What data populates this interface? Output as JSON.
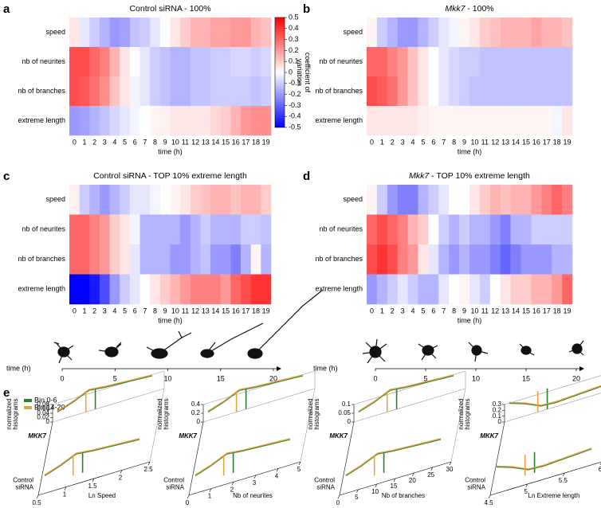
{
  "chart_data": [
    {
      "type": "heatmap",
      "panel": "a",
      "title": "Control siRNA - 100%",
      "italic_gene": false,
      "x_label": "time (h)",
      "x": [
        0,
        1,
        2,
        3,
        4,
        5,
        6,
        7,
        8,
        9,
        10,
        11,
        12,
        13,
        14,
        15,
        16,
        17,
        18,
        19
      ],
      "rows": [
        "speed",
        "nb of neurites",
        "nb of branches",
        "extreme length"
      ],
      "values": [
        [
          0.05,
          -0.05,
          -0.1,
          -0.15,
          -0.2,
          -0.18,
          -0.12,
          -0.1,
          -0.05,
          0,
          0.05,
          0.1,
          0.15,
          0.15,
          0.18,
          0.18,
          0.2,
          0.2,
          0.15,
          0.12
        ],
        [
          0.35,
          0.35,
          0.3,
          0.25,
          0.15,
          0.05,
          0,
          -0.05,
          -0.1,
          -0.12,
          -0.15,
          -0.15,
          -0.12,
          -0.12,
          -0.1,
          -0.1,
          -0.08,
          -0.08,
          -0.1,
          -0.08
        ],
        [
          0.35,
          0.33,
          0.28,
          0.22,
          0.12,
          0.05,
          -0.02,
          -0.05,
          -0.1,
          -0.12,
          -0.15,
          -0.15,
          -0.12,
          -0.12,
          -0.1,
          -0.1,
          -0.1,
          -0.1,
          -0.12,
          -0.1
        ],
        [
          -0.2,
          -0.18,
          -0.15,
          -0.12,
          -0.08,
          -0.05,
          -0.02,
          0,
          0.02,
          0.03,
          0.05,
          0.05,
          0.05,
          0.05,
          0.08,
          0.1,
          0.15,
          0.2,
          0.22,
          0.22
        ]
      ],
      "colorbar": {
        "label": "coefficient of variation",
        "lim": [
          -0.5,
          0.5
        ],
        "ticks": [
          0.5,
          0.4,
          0.3,
          0.2,
          0.1,
          0,
          -0.1,
          -0.2,
          -0.3,
          -0.4,
          -0.5
        ]
      }
    },
    {
      "type": "heatmap",
      "panel": "b",
      "title": "Mkk7 - 100%",
      "italic_gene": true,
      "x_label": "time (h)",
      "x": [
        0,
        1,
        2,
        3,
        4,
        5,
        6,
        7,
        8,
        9,
        10,
        11,
        12,
        13,
        14,
        15,
        16,
        17,
        18,
        19
      ],
      "rows": [
        "speed",
        "nb of neurites",
        "nb of branches",
        "extreme length"
      ],
      "values": [
        [
          0.02,
          -0.1,
          -0.15,
          -0.2,
          -0.2,
          -0.15,
          -0.1,
          -0.05,
          -0.02,
          0.02,
          0.05,
          0.1,
          0.12,
          0.15,
          0.15,
          0.15,
          0.18,
          0.15,
          0.15,
          0.12
        ],
        [
          0.3,
          0.3,
          0.25,
          0.2,
          0.12,
          0.05,
          0,
          -0.05,
          -0.08,
          -0.1,
          -0.1,
          -0.12,
          -0.12,
          -0.12,
          -0.12,
          -0.12,
          -0.12,
          -0.12,
          -0.12,
          -0.12
        ],
        [
          0.35,
          0.32,
          0.28,
          0.2,
          0.12,
          0.05,
          0,
          -0.05,
          -0.08,
          -0.1,
          -0.12,
          -0.12,
          -0.12,
          -0.12,
          -0.12,
          -0.12,
          -0.12,
          -0.12,
          -0.12,
          -0.12
        ],
        [
          0.05,
          0.05,
          0.05,
          0.05,
          0.05,
          0.03,
          0.02,
          0.02,
          0.02,
          0.02,
          0.02,
          0.02,
          0.02,
          0.02,
          0.02,
          0.02,
          0.02,
          0.02,
          -0.02,
          0.05
        ]
      ]
    },
    {
      "type": "heatmap",
      "panel": "c",
      "title": "Control siRNA - TOP 10% extreme length",
      "italic_gene": false,
      "x_label": "time (h)",
      "x": [
        0,
        1,
        2,
        3,
        4,
        5,
        6,
        7,
        8,
        9,
        10,
        11,
        12,
        13,
        14,
        15,
        16,
        17,
        18,
        19
      ],
      "rows": [
        "speed",
        "nb of neurites",
        "nb of branches",
        "extreme length"
      ],
      "values": [
        [
          0.03,
          -0.1,
          -0.15,
          -0.2,
          -0.15,
          -0.1,
          -0.05,
          -0.05,
          -0.02,
          0,
          0.02,
          0.05,
          0.1,
          0.12,
          0.15,
          0.15,
          0.12,
          0.15,
          0.15,
          0.1
        ],
        [
          0.3,
          0.3,
          0.25,
          0.2,
          0.1,
          0.05,
          -0.02,
          -0.15,
          -0.15,
          -0.15,
          -0.15,
          -0.2,
          -0.15,
          -0.1,
          -0.15,
          -0.15,
          -0.15,
          -0.1,
          -0.1,
          -0.12
        ],
        [
          0.3,
          0.3,
          0.25,
          0.2,
          0.1,
          0.05,
          -0.05,
          -0.15,
          -0.15,
          -0.15,
          -0.2,
          -0.2,
          -0.15,
          -0.12,
          -0.2,
          -0.2,
          -0.25,
          -0.15,
          0.02,
          -0.15
        ],
        [
          -0.5,
          -0.5,
          -0.45,
          -0.35,
          -0.2,
          -0.1,
          -0.05,
          0,
          0.05,
          0.1,
          0.15,
          0.2,
          0.25,
          0.25,
          0.25,
          0.2,
          0.3,
          0.35,
          0.4,
          0.4
        ]
      ]
    },
    {
      "type": "heatmap",
      "panel": "d",
      "title": "Mkk7 - TOP 10% extreme length",
      "italic_gene": true,
      "x_label": "time (h)",
      "x": [
        0,
        1,
        2,
        3,
        4,
        5,
        6,
        7,
        8,
        9,
        10,
        11,
        12,
        13,
        14,
        15,
        16,
        17,
        18,
        19
      ],
      "rows": [
        "speed",
        "nb of neurites",
        "nb of branches",
        "extreme length"
      ],
      "values": [
        [
          0.02,
          -0.1,
          -0.2,
          -0.25,
          -0.25,
          -0.15,
          -0.1,
          -0.05,
          0,
          0,
          0.05,
          0.1,
          0.15,
          0.12,
          0.15,
          0.15,
          0.2,
          0.25,
          0.3,
          0.25
        ],
        [
          0.3,
          0.35,
          0.3,
          0.25,
          0.15,
          0.1,
          0,
          -0.1,
          -0.15,
          -0.1,
          -0.15,
          -0.15,
          -0.2,
          -0.25,
          -0.15,
          -0.15,
          -0.1,
          -0.1,
          -0.1,
          -0.1
        ],
        [
          0.35,
          0.4,
          0.35,
          0.25,
          0.2,
          0.05,
          -0.05,
          -0.15,
          -0.2,
          -0.15,
          -0.2,
          -0.2,
          -0.25,
          -0.3,
          -0.25,
          -0.2,
          -0.2,
          -0.2,
          -0.15,
          -0.15
        ],
        [
          -0.2,
          -0.15,
          -0.1,
          -0.05,
          -0.1,
          -0.15,
          -0.15,
          -0.05,
          0,
          0.02,
          -0.05,
          -0.1,
          0,
          0.05,
          0.1,
          0.1,
          0.15,
          0.15,
          0.2,
          0.3
        ]
      ]
    }
  ],
  "time_axes": [
    {
      "label": "time (h)",
      "xlim": [
        0,
        20
      ],
      "ticks": [
        0,
        5,
        10,
        15,
        20
      ]
    },
    {
      "label": "time (h)",
      "xlim": [
        0,
        20
      ],
      "ticks": [
        0,
        5,
        10,
        15,
        20
      ]
    }
  ],
  "panel_e": {
    "panel": "e",
    "legend": [
      {
        "name": "Bin 0-6",
        "color": "#2e7d32"
      },
      {
        "name": "Bin 14-20",
        "color": "#e8a33d"
      }
    ],
    "plots": [
      {
        "z_label": "normalized histograms",
        "z_ticks": [
          0.08,
          0.06,
          0.04,
          0.02,
          0
        ],
        "rows": [
          "MKK7",
          "Control siRNA"
        ],
        "x_label": "Ln Speed",
        "xlim": [
          0.5,
          2.5
        ],
        "x_ticks": [
          0.5,
          1,
          1.5,
          2,
          2.5
        ]
      },
      {
        "z_label": "normalized histograms",
        "z_ticks": [
          0.4,
          0.2,
          0
        ],
        "rows": [
          "MKK7",
          "Control siRNA"
        ],
        "x_label": "Nb of neurites",
        "xlim": [
          0,
          5
        ],
        "x_ticks": [
          0,
          1,
          2,
          3,
          4,
          5
        ]
      },
      {
        "z_label": "normalized histograms",
        "z_ticks": [
          0.1,
          0.05,
          0
        ],
        "rows": [
          "MKK7",
          "Control siRNA"
        ],
        "x_label": "Nb of branches",
        "xlim": [
          0,
          30
        ],
        "x_ticks": [
          0,
          5,
          10,
          15,
          20,
          25,
          30
        ]
      },
      {
        "z_label": "normalized histograms",
        "z_ticks": [
          0.3,
          0.2,
          0.1,
          0
        ],
        "rows": [
          "MKK7",
          "Control siRNA"
        ],
        "x_label": "Ln Extreme length",
        "xlim": [
          4.5,
          6
        ],
        "x_ticks": [
          4.5,
          5,
          5.5,
          6
        ]
      }
    ]
  }
}
